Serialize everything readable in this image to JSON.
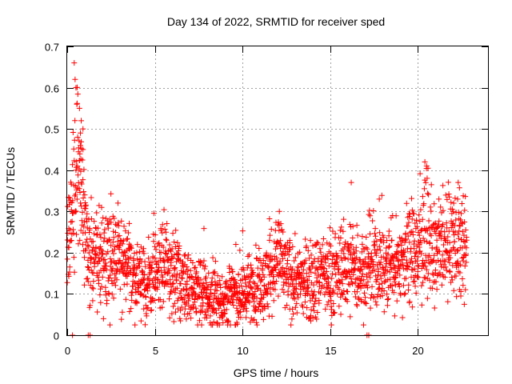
{
  "chart_data": {
    "type": "scatter",
    "title": "Day 134 of 2022, SRMTID for receiver sped",
    "xlabel": "GPS time / hours",
    "ylabel": "SRMTID / TECUs",
    "xlim": [
      0,
      24
    ],
    "ylim": [
      0,
      0.7
    ],
    "xticks": [
      0,
      5,
      10,
      15,
      20
    ],
    "yticks": [
      0,
      0.1,
      0.2,
      0.3,
      0.4,
      0.5,
      0.6,
      0.7
    ],
    "xtick_labels": [
      "0",
      "5",
      "10",
      "15",
      "20"
    ],
    "ytick_labels": [
      "0",
      "0.1",
      "0.2",
      "0.3",
      "0.4",
      "0.5",
      "0.6",
      "0.7"
    ],
    "grid": true,
    "marker": "+",
    "color": "#ff0000",
    "series": [
      {
        "name": "SRMTID",
        "trend": [
          [
            0.0,
            0.24
          ],
          [
            0.2,
            0.26
          ],
          [
            0.4,
            0.3
          ],
          [
            0.5,
            0.4
          ],
          [
            0.6,
            0.45
          ],
          [
            0.8,
            0.35
          ],
          [
            1.0,
            0.27
          ],
          [
            1.2,
            0.22
          ],
          [
            1.5,
            0.18
          ],
          [
            2.0,
            0.19
          ],
          [
            2.5,
            0.2
          ],
          [
            3.0,
            0.19
          ],
          [
            3.5,
            0.16
          ],
          [
            4.0,
            0.14
          ],
          [
            4.5,
            0.12
          ],
          [
            5.0,
            0.14
          ],
          [
            5.5,
            0.17
          ],
          [
            6.0,
            0.16
          ],
          [
            6.5,
            0.13
          ],
          [
            7.0,
            0.12
          ],
          [
            7.5,
            0.11
          ],
          [
            8.0,
            0.09
          ],
          [
            8.5,
            0.08
          ],
          [
            9.0,
            0.09
          ],
          [
            9.5,
            0.1
          ],
          [
            10.0,
            0.1
          ],
          [
            10.5,
            0.11
          ],
          [
            11.0,
            0.12
          ],
          [
            11.5,
            0.14
          ],
          [
            12.0,
            0.19
          ],
          [
            12.5,
            0.14
          ],
          [
            13.0,
            0.13
          ],
          [
            13.5,
            0.13
          ],
          [
            14.0,
            0.14
          ],
          [
            14.5,
            0.15
          ],
          [
            15.0,
            0.14
          ],
          [
            15.5,
            0.15
          ],
          [
            16.0,
            0.17
          ],
          [
            16.5,
            0.16
          ],
          [
            17.0,
            0.15
          ],
          [
            17.5,
            0.17
          ],
          [
            18.0,
            0.16
          ],
          [
            18.5,
            0.17
          ],
          [
            19.0,
            0.18
          ],
          [
            19.5,
            0.2
          ],
          [
            20.0,
            0.19
          ],
          [
            20.3,
            0.26
          ],
          [
            20.6,
            0.22
          ],
          [
            21.0,
            0.19
          ],
          [
            21.5,
            0.21
          ],
          [
            22.0,
            0.23
          ],
          [
            22.5,
            0.21
          ],
          [
            22.8,
            0.18
          ]
        ],
        "peaks": [
          [
            0.4,
            0.66
          ],
          [
            0.45,
            0.62
          ],
          [
            0.5,
            0.6
          ],
          [
            0.55,
            0.56
          ],
          [
            0.7,
            0.55
          ],
          [
            0.8,
            0.52
          ],
          [
            0.9,
            0.5
          ],
          [
            0.6,
            0.48
          ],
          [
            0.75,
            0.46
          ],
          [
            0.9,
            0.45
          ],
          [
            0.5,
            0.4
          ],
          [
            0.8,
            0.37
          ],
          [
            1.0,
            0.34
          ],
          [
            16.2,
            0.37
          ],
          [
            17.8,
            0.33
          ],
          [
            20.4,
            0.42
          ],
          [
            20.5,
            0.41
          ],
          [
            21.2,
            0.33
          ],
          [
            22.3,
            0.37
          ],
          [
            12.1,
            0.3
          ]
        ],
        "zeros": [
          0.3,
          1.2,
          1.3,
          17.1,
          17.2
        ]
      }
    ]
  }
}
